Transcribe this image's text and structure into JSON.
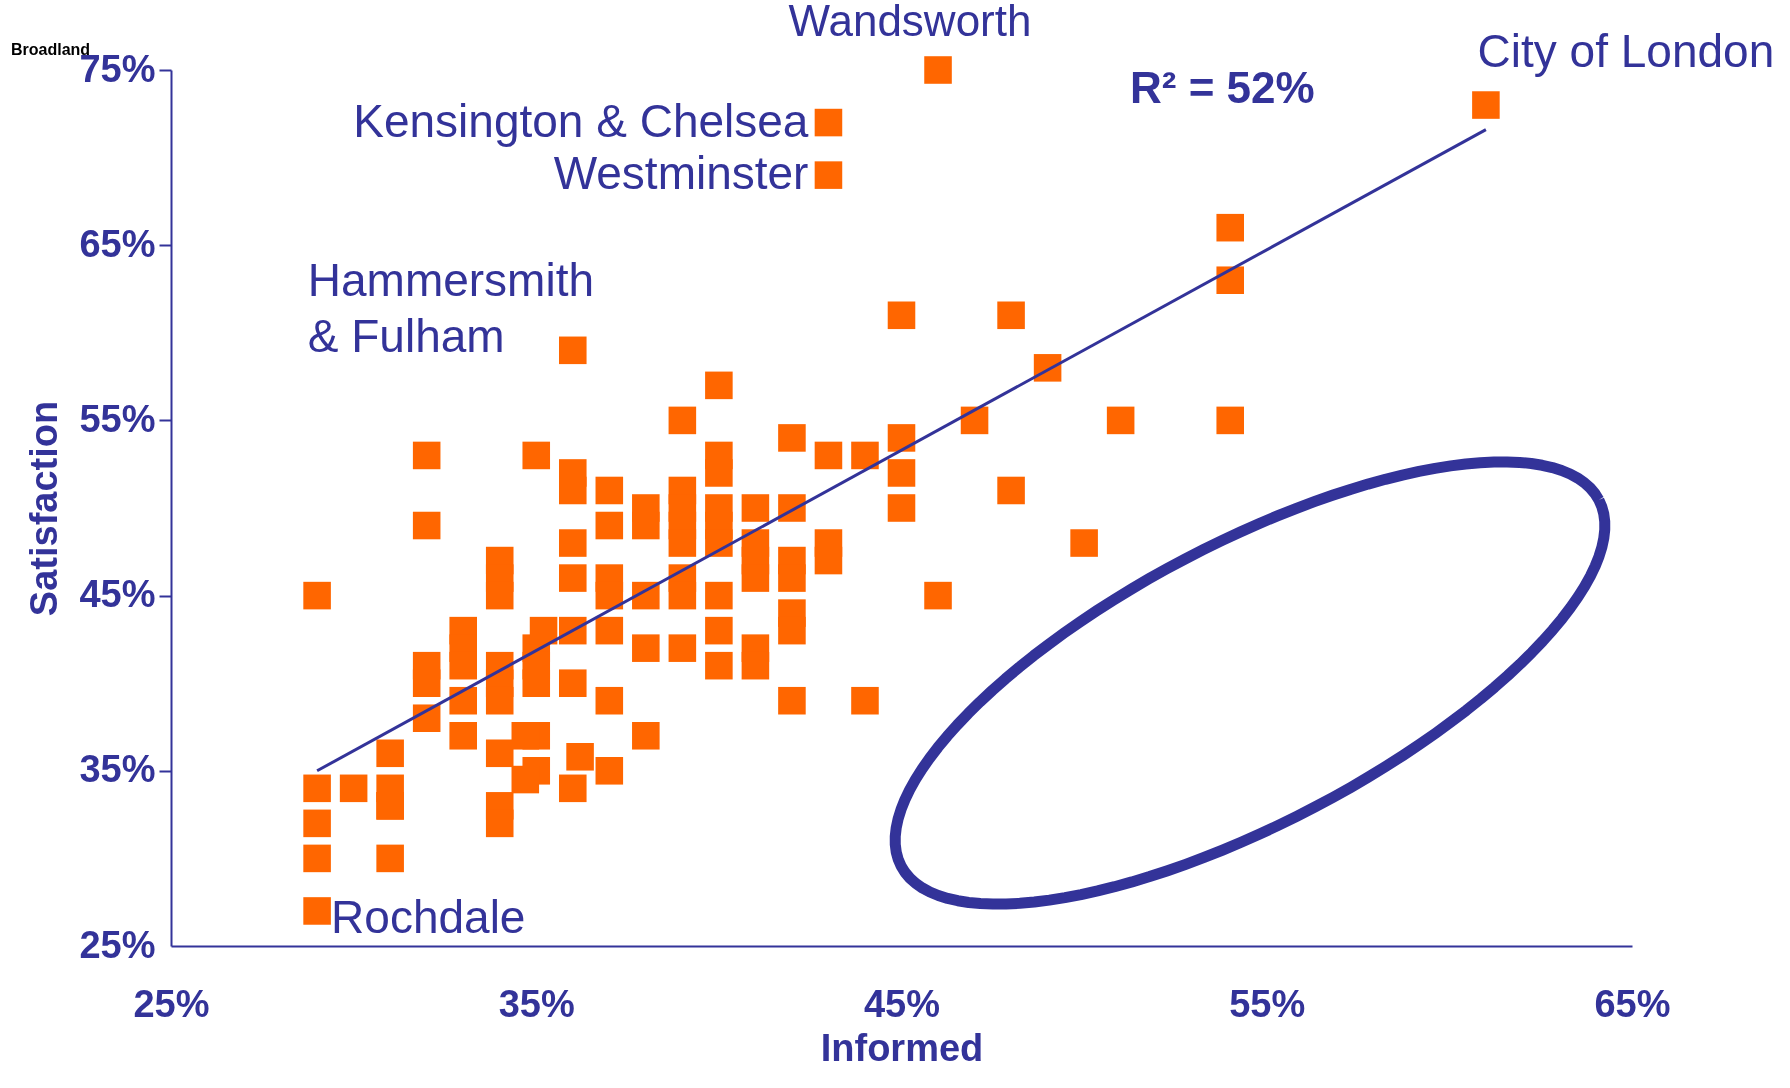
{
  "chart_data": {
    "type": "scatter",
    "xlabel": "Informed",
    "ylabel": "Satisfaction",
    "xlim": [
      25,
      65
    ],
    "ylim": [
      25,
      75
    ],
    "xticks": [
      {
        "value": 25,
        "label": "25%"
      },
      {
        "value": 35,
        "label": "35%"
      },
      {
        "value": 45,
        "label": "45%"
      },
      {
        "value": 55,
        "label": "55%"
      },
      {
        "value": 65,
        "label": "65%"
      }
    ],
    "yticks": [
      {
        "value": 25,
        "label": "25%"
      },
      {
        "value": 35,
        "label": "35%"
      },
      {
        "value": 45,
        "label": "45%"
      },
      {
        "value": 55,
        "label": "55%"
      },
      {
        "value": 65,
        "label": "65%"
      },
      {
        "value": 75,
        "label": "75%"
      }
    ],
    "grid": false,
    "series": [
      {
        "marker": "square",
        "color": "#ff6600",
        "x": [
          29,
          29,
          29,
          29,
          29,
          30,
          31,
          31,
          31,
          31,
          31,
          32,
          32,
          32,
          32,
          32,
          33,
          33,
          33,
          33,
          33,
          34,
          34,
          34,
          34,
          34,
          34,
          34,
          34,
          34,
          35,
          35,
          35,
          35,
          35,
          35,
          34.7,
          34.7,
          35.2,
          36,
          36,
          36,
          36,
          36,
          36,
          36,
          36,
          37,
          37,
          37,
          37,
          37,
          37,
          37,
          36.2,
          38,
          38,
          38,
          38,
          38,
          39,
          39,
          39,
          39,
          39,
          39,
          39,
          39,
          40,
          40,
          40,
          40,
          40,
          40,
          40,
          40,
          40,
          41,
          41,
          41,
          41,
          41,
          41,
          42,
          42,
          42,
          42,
          42,
          42,
          42,
          43,
          43,
          43,
          43,
          43,
          44,
          44,
          45,
          45,
          45,
          45,
          46,
          46,
          47,
          48,
          48,
          49,
          50,
          51,
          54,
          54,
          54,
          61
        ],
        "values": [
          45,
          34,
          32,
          30,
          27,
          34,
          36,
          34,
          33,
          33,
          30,
          53,
          49,
          41,
          40,
          38,
          43,
          42,
          41,
          39,
          37,
          47,
          46,
          45,
          41,
          40,
          39,
          36,
          33,
          32,
          53,
          42,
          41,
          40,
          37,
          35,
          37,
          34.5,
          43,
          59,
          52,
          51,
          48,
          46,
          43,
          40,
          34,
          51,
          49,
          46,
          45,
          43,
          39,
          35,
          35.8,
          50,
          49,
          45,
          42,
          37,
          55,
          51,
          50,
          49,
          48,
          46,
          45,
          42,
          57,
          53,
          52,
          50,
          49,
          48,
          45,
          43,
          41,
          50,
          48,
          47,
          46,
          42,
          41,
          54,
          50,
          47,
          46,
          44,
          43,
          39,
          72,
          69,
          53,
          48,
          47,
          53,
          39,
          61,
          54,
          52,
          50,
          75,
          45,
          55,
          61,
          51,
          58,
          48,
          55,
          66,
          63,
          55,
          73
        ]
      },
      {
        "type": "line",
        "color": "#333399",
        "x": [
          29,
          61
        ],
        "values": [
          35,
          71.6
        ]
      }
    ],
    "annotations": [
      {
        "text": "Kensington & Chelsea",
        "x": 43,
        "y": 72
      },
      {
        "text": "Westminster",
        "x": 43,
        "y": 69
      },
      "Wandsworth",
      {
        "text": "City of London",
        "x": 61,
        "y": 73
      },
      {
        "text": "Hammersmith\n& Fulham",
        "x": 36,
        "y": 59
      },
      {
        "text": "Rochdale",
        "x": 29,
        "y": 27
      },
      "R² = 52%",
      "Broadland"
    ]
  }
}
